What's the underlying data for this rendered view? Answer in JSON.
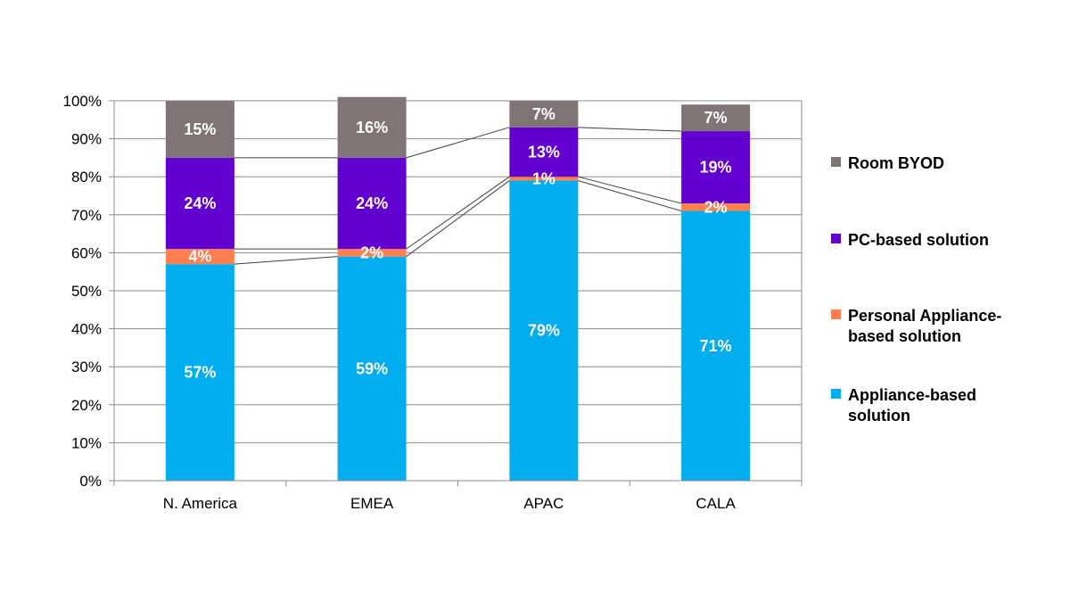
{
  "chart_data": {
    "type": "bar",
    "stacked": true,
    "categories": [
      "N. America",
      "EMEA",
      "APAC",
      "CALA"
    ],
    "series": [
      {
        "name": "Appliance-based solution",
        "values": [
          57,
          59,
          79,
          71
        ],
        "labels": [
          "57%",
          "59%",
          "79%",
          "71%"
        ],
        "color": "#00AEEF"
      },
      {
        "name": "Personal Appliance-based solution",
        "values": [
          4,
          2,
          1,
          2
        ],
        "labels": [
          "4%",
          "2%",
          "1%",
          "2%"
        ],
        "color": "#FF7F50"
      },
      {
        "name": "PC-based solution",
        "values": [
          24,
          24,
          13,
          19
        ],
        "labels": [
          "24%",
          "24%",
          "13%",
          "19%"
        ],
        "color": "#6100D1"
      },
      {
        "name": "Room BYOD",
        "values": [
          15,
          16,
          7,
          7
        ],
        "labels": [
          "15%",
          "16%",
          "7%",
          "7%"
        ],
        "color": "#7F7574"
      }
    ],
    "yticks": [
      "0%",
      "10%",
      "20%",
      "30%",
      "40%",
      "50%",
      "60%",
      "70%",
      "80%",
      "90%",
      "100%"
    ],
    "ylim": [
      0,
      100
    ],
    "grid": true,
    "series_lines": true,
    "legend_position": "right"
  }
}
